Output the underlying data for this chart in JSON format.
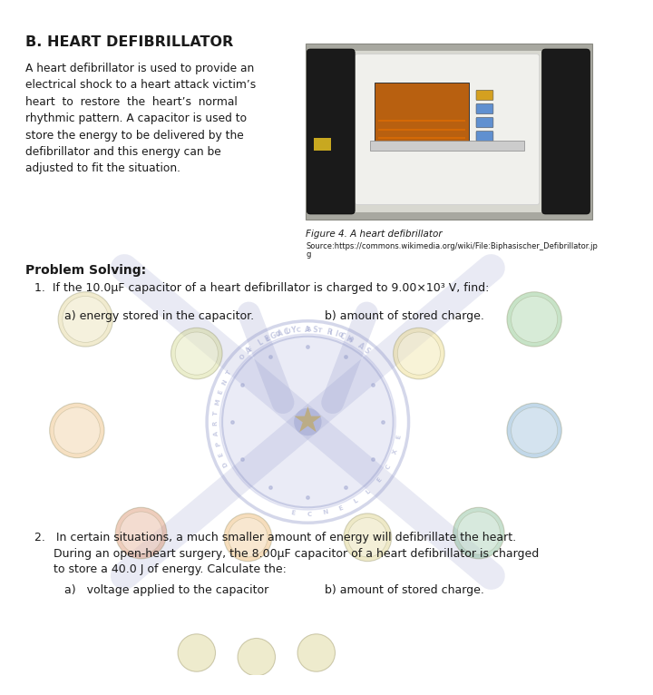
{
  "title": "B. HEART DEFIBRILLATOR",
  "bg_color": "#ffffff",
  "text_color": "#1a1a1a",
  "body_text_lines": [
    "A heart defibrillator is used to provide an",
    "electrical shock to a heart attack victim’s",
    "heart  to  restore  the  heart’s  normal",
    "rhythmic pattern. A capacitor is used to",
    "store the energy to be delivered by the",
    "defibrillator and this energy can be",
    "adjusted to fit the situation."
  ],
  "fig_caption": "Figure 4. A heart defibrillator",
  "fig_source_line1": "Source:https://commons.wikimedia.org/wiki/File:Biphasischer_Defibrillator.jp",
  "fig_source_line2": "g",
  "problem_solving_label": "Problem Solving:",
  "problem1_text": "1.  If the 10.0μF capacitor of a heart defibrillator is charged to 9.00×10³ V, find:",
  "problem1a": "a) energy stored in the capacitor.",
  "problem1b": "b) amount of stored charge.",
  "problem2_intro": "2.   In certain situations, a much smaller amount of energy will defibrillate the heart.",
  "problem2_line2": "During an open-heart surgery, the 8.00μF capacitor of a heart defibrillator is charged",
  "problem2_line3": "to store a 40.0 J of energy. Calculate the:",
  "problem2a": "a)   voltage applied to the capacitor",
  "problem2b": "b) amount of stored charge.",
  "wm_color": "#9098c8",
  "wm_alpha": 0.28,
  "img_box_color": "#b8b8b8",
  "img_bg": "#c8c8c4",
  "img_device_color": "#e8e8e2",
  "img_screen_color": "#b86010",
  "img_pad_color": "#1a1a1a",
  "img_cabinet_color": "#a8a8a0"
}
